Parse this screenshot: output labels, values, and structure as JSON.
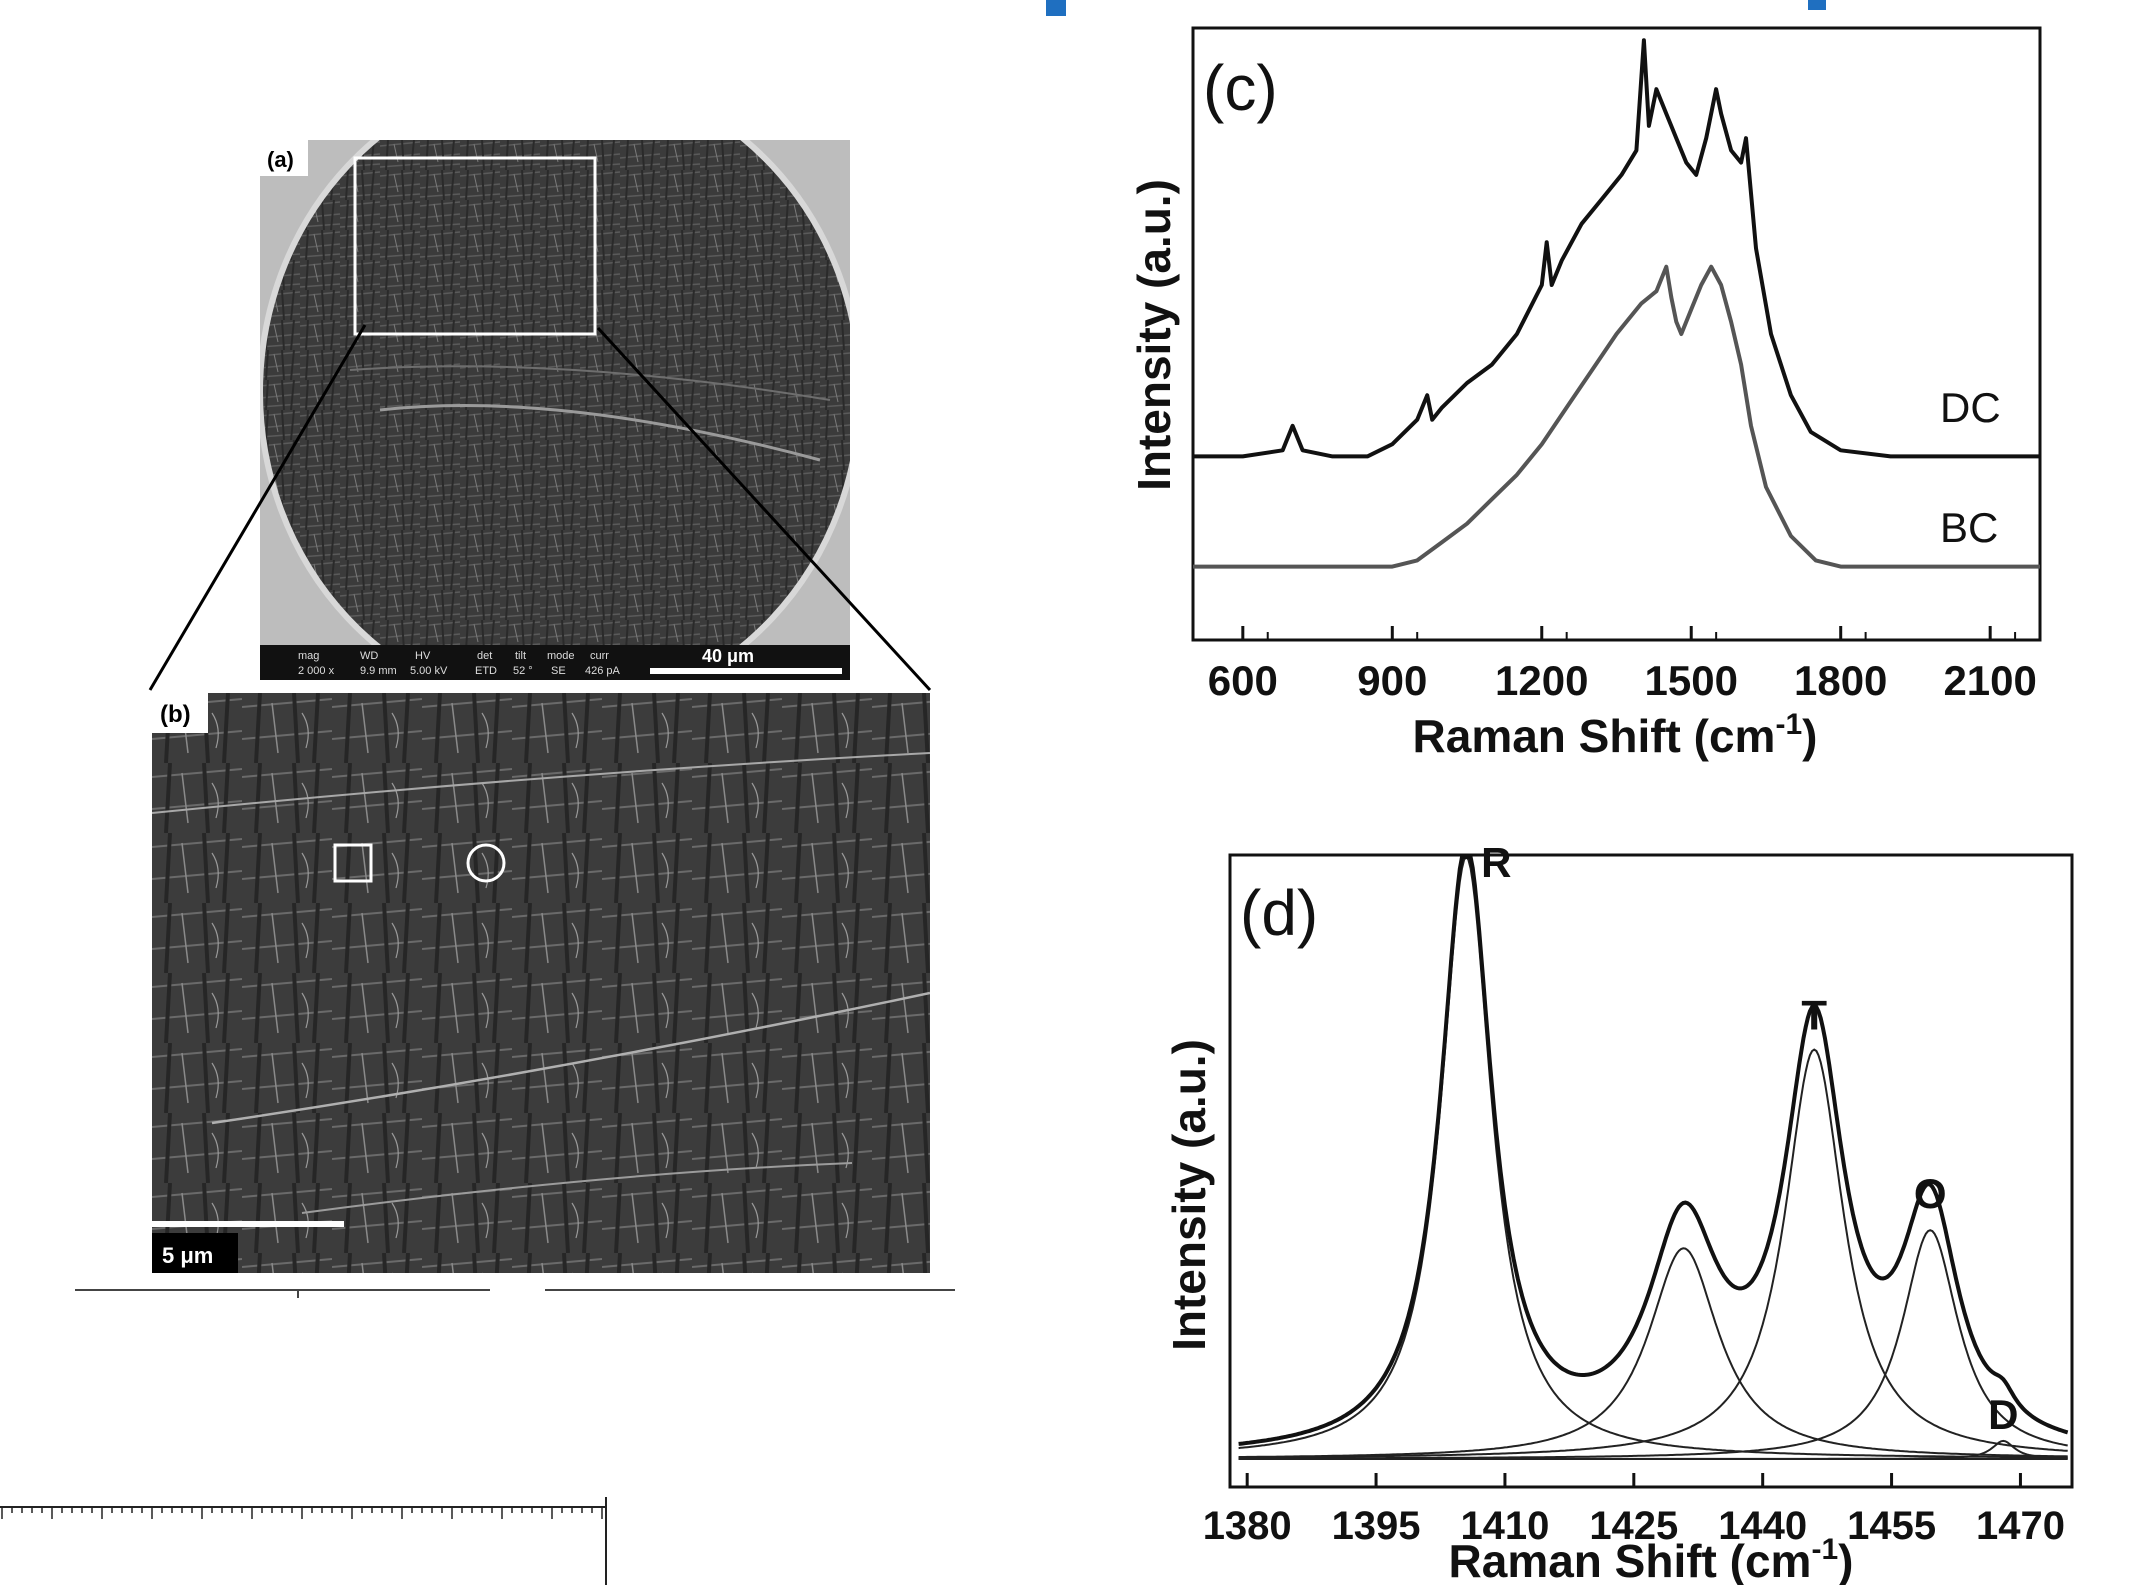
{
  "colors": {
    "accent_blue": "#1f6fc0",
    "sem_dark": "#3a3a3a",
    "line_dark": "#111111",
    "line_gray": "#555555"
  },
  "panel_a": {
    "tag": "(a)",
    "info_bar": {
      "headers": [
        "mag",
        "WD",
        "HV",
        "det",
        "tilt",
        "mode",
        "curr"
      ],
      "values": [
        "2 000 x",
        "9.9 mm",
        "5.00 kV",
        "ETD",
        "52 °",
        "SE",
        "426 pA"
      ]
    },
    "scale_label": "40 μm"
  },
  "panel_b": {
    "tag": "(b)",
    "scale_label": "5 μm"
  },
  "chart_data": [
    {
      "panel": "c",
      "type": "line",
      "panel_label": "(c)",
      "xlabel": "Raman Shift (cm",
      "xlabel_sup": "-1",
      "xlabel_end": ")",
      "ylabel": "Intensity (a.u.)",
      "xlim": [
        500,
        2200
      ],
      "ylim": [
        0,
        1
      ],
      "x_ticks": [
        "600",
        "900",
        "1200",
        "1500",
        "1800",
        "2100"
      ],
      "x_tick_values": [
        600,
        900,
        1200,
        1500,
        1800,
        2100
      ],
      "grid": false,
      "series": [
        {
          "name": "DC",
          "color": "#111111",
          "x": [
            500,
            600,
            680,
            700,
            720,
            780,
            850,
            900,
            950,
            970,
            980,
            1000,
            1050,
            1100,
            1150,
            1200,
            1210,
            1220,
            1240,
            1280,
            1320,
            1360,
            1390,
            1405,
            1415,
            1430,
            1450,
            1470,
            1490,
            1510,
            1530,
            1550,
            1560,
            1580,
            1600,
            1610,
            1630,
            1660,
            1700,
            1740,
            1800,
            1900,
            2000,
            2100,
            2200
          ],
          "y": [
            0.3,
            0.3,
            0.31,
            0.35,
            0.31,
            0.3,
            0.3,
            0.32,
            0.36,
            0.4,
            0.36,
            0.38,
            0.42,
            0.45,
            0.5,
            0.58,
            0.65,
            0.58,
            0.62,
            0.68,
            0.72,
            0.76,
            0.8,
            0.98,
            0.84,
            0.9,
            0.86,
            0.82,
            0.78,
            0.76,
            0.82,
            0.9,
            0.86,
            0.8,
            0.78,
            0.82,
            0.64,
            0.5,
            0.4,
            0.34,
            0.31,
            0.3,
            0.3,
            0.3,
            0.3
          ]
        },
        {
          "name": "BC",
          "color": "#555555",
          "x": [
            500,
            600,
            700,
            800,
            900,
            950,
            1000,
            1050,
            1100,
            1150,
            1200,
            1250,
            1300,
            1350,
            1400,
            1430,
            1450,
            1460,
            1470,
            1480,
            1500,
            1520,
            1540,
            1560,
            1580,
            1600,
            1620,
            1650,
            1700,
            1750,
            1800,
            1900,
            2000,
            2100,
            2200
          ],
          "y": [
            0.12,
            0.12,
            0.12,
            0.12,
            0.12,
            0.13,
            0.16,
            0.19,
            0.23,
            0.27,
            0.32,
            0.38,
            0.44,
            0.5,
            0.55,
            0.57,
            0.61,
            0.56,
            0.52,
            0.5,
            0.54,
            0.58,
            0.61,
            0.58,
            0.52,
            0.45,
            0.35,
            0.25,
            0.17,
            0.13,
            0.12,
            0.12,
            0.12,
            0.12,
            0.12
          ]
        }
      ]
    },
    {
      "panel": "d",
      "type": "line",
      "panel_label": "(d)",
      "xlabel": "Raman Shift (cm",
      "xlabel_sup": "-1",
      "xlabel_end": ")",
      "ylabel": "Intensity (a.u.)",
      "xlim": [
        1378,
        1476
      ],
      "ylim": [
        0,
        1
      ],
      "x_ticks": [
        "1380",
        "1395",
        "1410",
        "1425",
        "1440",
        "1455",
        "1470"
      ],
      "x_tick_values": [
        1380,
        1395,
        1410,
        1425,
        1440,
        1455,
        1470
      ],
      "grid": false,
      "baseline": 0.02,
      "peaks": [
        {
          "label": "R",
          "center": 1405.5,
          "height": 1.0,
          "width": 3.6
        },
        {
          "label": "",
          "center": 1430.8,
          "height": 0.35,
          "width": 5.0
        },
        {
          "label": "T",
          "center": 1446.0,
          "height": 0.68,
          "width": 4.2
        },
        {
          "label": "O",
          "center": 1459.5,
          "height": 0.38,
          "width": 4.0
        },
        {
          "label": "D",
          "center": 1468.0,
          "height": 0.03,
          "width": 1.6
        }
      ]
    }
  ]
}
